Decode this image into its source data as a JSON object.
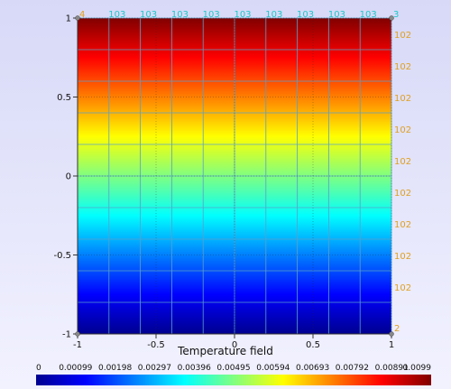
{
  "chart_data": {
    "type": "heatmap",
    "xlabel": "Temperature field",
    "xlim": [
      -1,
      1
    ],
    "ylim": [
      -1,
      1
    ],
    "x_ticks": [
      -1,
      -0.5,
      0,
      0.5,
      1
    ],
    "y_ticks": [
      -1,
      -0.5,
      0,
      0.5,
      1
    ],
    "x_tick_labels": [
      "-1",
      "-0.5",
      "0",
      "0.5",
      "1"
    ],
    "y_tick_labels": [
      "-1",
      "-0.5",
      "0",
      "0.5",
      "1"
    ],
    "colormap": "jet",
    "grid_x": [
      -1,
      -0.8,
      -0.6,
      -0.4,
      -0.2,
      0,
      0.2,
      0.4,
      0.6,
      0.8,
      1
    ],
    "grid_y": [
      -1,
      -0.8,
      -0.6,
      -0.4,
      -0.2,
      0,
      0.2,
      0.4,
      0.6,
      0.8,
      1
    ],
    "top_corner_labels": {
      "left": "4",
      "right": "3"
    },
    "top_node_labels": [
      "103",
      "103",
      "103",
      "103",
      "103",
      "103",
      "103",
      "103",
      "103"
    ],
    "right_corner_label": "2",
    "right_node_labels": [
      "102",
      "102",
      "102",
      "102",
      "102",
      "102",
      "102",
      "102",
      "102"
    ],
    "colorbar": {
      "min": 0,
      "max": 0.0099,
      "tick_labels": [
        "0",
        "0.00099",
        "0.00198",
        "0.00297",
        "0.00396",
        "0.00495",
        "0.00594",
        "0.00693",
        "0.00792",
        "0.00891",
        "0.0099"
      ]
    },
    "colors": {
      "grid_line": "#5aa0c8",
      "top_node_color": "#1ec8c8",
      "right_node_color": "#e0a020",
      "background": "#e4e5fa"
    }
  }
}
